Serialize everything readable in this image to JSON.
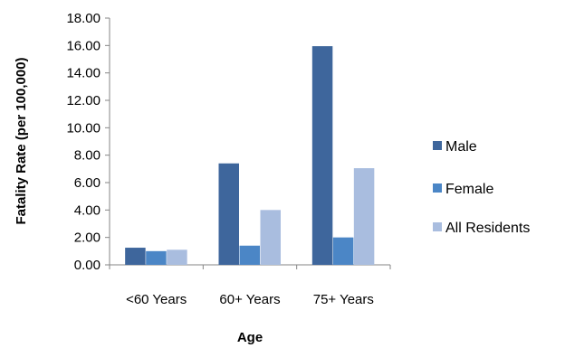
{
  "chart_data": {
    "type": "bar",
    "xlabel": "Age",
    "ylabel": "Fatality Rate (per 100,000)",
    "categories": [
      "<60 Years",
      "60+ Years",
      "75+ Years"
    ],
    "series": [
      {
        "name": "Male",
        "color": "#3E669C",
        "values": [
          1.25,
          7.4,
          15.95
        ]
      },
      {
        "name": "Female",
        "color": "#4B86C6",
        "values": [
          1.0,
          1.4,
          2.0
        ]
      },
      {
        "name": "All Residents",
        "color": "#A9BDDF",
        "values": [
          1.1,
          4.0,
          7.05
        ]
      }
    ],
    "ylim": [
      0,
      18
    ],
    "yticks": [
      "0.00",
      "2.00",
      "4.00",
      "6.00",
      "8.00",
      "10.00",
      "12.00",
      "14.00",
      "16.00",
      "18.00"
    ],
    "grid": false,
    "legend_position": "right"
  }
}
